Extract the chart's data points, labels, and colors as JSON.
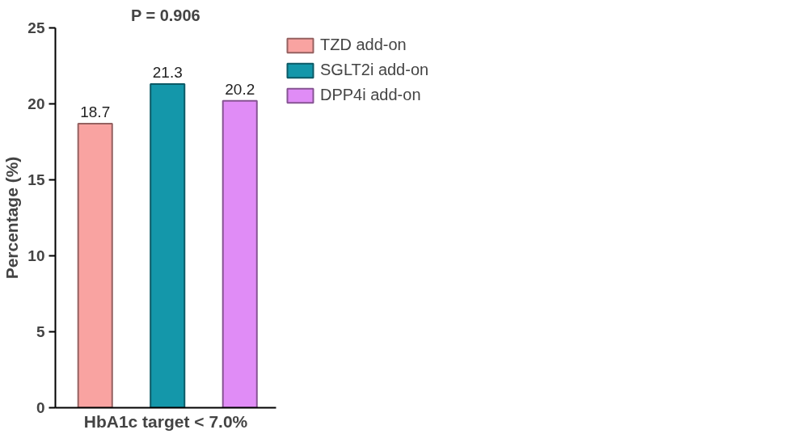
{
  "chart_data": {
    "type": "bar",
    "title": "P = 0.906",
    "xlabel": "HbA1c target < 7.0%",
    "ylabel": "Percentage (%)",
    "categories": [
      null,
      null,
      null
    ],
    "series": [
      {
        "name": "TZD add-on",
        "color": "#f9a3a1",
        "values": [
          18.7,
          null,
          null
        ]
      },
      {
        "name": "SGLT2i add-on",
        "color": "#1497aa",
        "values": [
          null,
          21.3,
          null
        ]
      },
      {
        "name": "DPP4i add-on",
        "color": "#e08cf6",
        "values": [
          null,
          null,
          20.2
        ]
      }
    ],
    "ylim": [
      0,
      25
    ],
    "yticks": [
      0,
      5,
      10,
      15,
      20,
      25
    ],
    "grid": false,
    "legend": "right",
    "data_labels": true
  }
}
